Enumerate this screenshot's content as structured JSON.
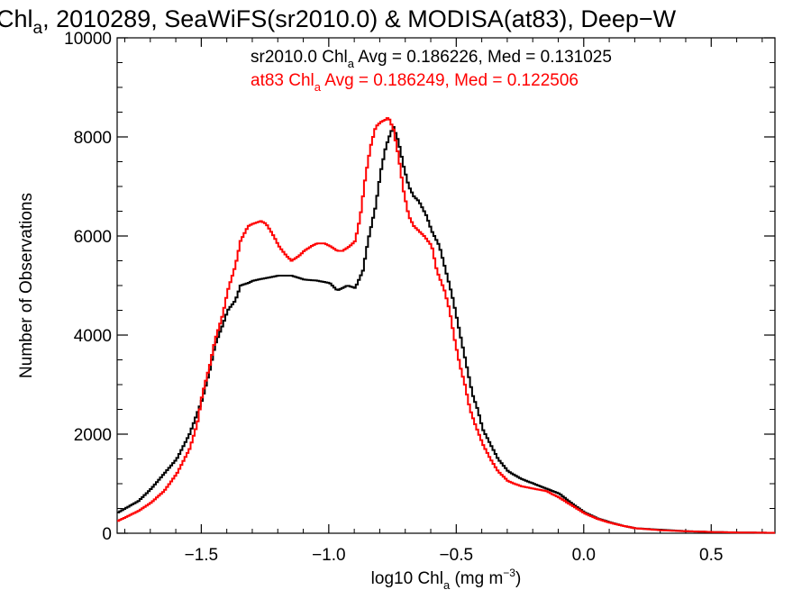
{
  "chart_data": {
    "type": "line",
    "title": {
      "pre": "Chl",
      "sub": "a",
      "post": ", 2010289, SeaWiFS(sr2010.0) & MODISA(at83), Deep−W"
    },
    "xlabel": {
      "pre": "log10 Chl",
      "sub": "a",
      "mid": " (mg m",
      "sup": "−3",
      "post": ")"
    },
    "ylabel": "Number of Observations",
    "xlim": [
      -1.83,
      0.75
    ],
    "ylim": [
      0,
      10000
    ],
    "x_ticks": [
      {
        "value": -1.5,
        "label": "−1.5"
      },
      {
        "value": -1.0,
        "label": "−1.0"
      },
      {
        "value": -0.5,
        "label": "−0.5"
      },
      {
        "value": 0.0,
        "label": "0.0"
      },
      {
        "value": 0.5,
        "label": "0.5"
      }
    ],
    "y_ticks": [
      {
        "value": 0,
        "label": "0"
      },
      {
        "value": 2000,
        "label": "2000"
      },
      {
        "value": 4000,
        "label": "4000"
      },
      {
        "value": 6000,
        "label": "6000"
      },
      {
        "value": 8000,
        "label": "8000"
      },
      {
        "value": 10000,
        "label": "10000"
      }
    ],
    "annotations": [
      {
        "pre": "sr2010.0 Chl",
        "sub": "a",
        "post": " Avg = 0.186226, Med = 0.131025",
        "color": "#000000"
      },
      {
        "pre": "at83 Chl",
        "sub": "a",
        "post": " Avg = 0.186249, Med = 0.122506",
        "color": "#ff0000"
      }
    ],
    "series": [
      {
        "color": "#000000",
        "points": [
          [
            -1.83,
            420
          ],
          [
            -1.75,
            650
          ],
          [
            -1.7,
            900
          ],
          [
            -1.65,
            1200
          ],
          [
            -1.6,
            1500
          ],
          [
            -1.55,
            2000
          ],
          [
            -1.5,
            2700
          ],
          [
            -1.47,
            3300
          ],
          [
            -1.45,
            3800
          ],
          [
            -1.42,
            4200
          ],
          [
            -1.4,
            4500
          ],
          [
            -1.37,
            4700
          ],
          [
            -1.35,
            5000
          ],
          [
            -1.32,
            5050
          ],
          [
            -1.3,
            5100
          ],
          [
            -1.25,
            5150
          ],
          [
            -1.2,
            5200
          ],
          [
            -1.15,
            5200
          ],
          [
            -1.1,
            5120
          ],
          [
            -1.05,
            5100
          ],
          [
            -1.0,
            5050
          ],
          [
            -0.97,
            4900
          ],
          [
            -0.93,
            5000
          ],
          [
            -0.9,
            4950
          ],
          [
            -0.87,
            5300
          ],
          [
            -0.85,
            5900
          ],
          [
            -0.82,
            6600
          ],
          [
            -0.8,
            7300
          ],
          [
            -0.78,
            7800
          ],
          [
            -0.76,
            8100
          ],
          [
            -0.75,
            8200
          ],
          [
            -0.73,
            7900
          ],
          [
            -0.71,
            7400
          ],
          [
            -0.69,
            7000
          ],
          [
            -0.67,
            6800
          ],
          [
            -0.65,
            6700
          ],
          [
            -0.62,
            6400
          ],
          [
            -0.6,
            6100
          ],
          [
            -0.57,
            5800
          ],
          [
            -0.55,
            5400
          ],
          [
            -0.52,
            4800
          ],
          [
            -0.5,
            4300
          ],
          [
            -0.48,
            3800
          ],
          [
            -0.46,
            3300
          ],
          [
            -0.44,
            2800
          ],
          [
            -0.42,
            2500
          ],
          [
            -0.4,
            2100
          ],
          [
            -0.37,
            1800
          ],
          [
            -0.34,
            1500
          ],
          [
            -0.3,
            1250
          ],
          [
            -0.25,
            1100
          ],
          [
            -0.2,
            1000
          ],
          [
            -0.15,
            900
          ],
          [
            -0.1,
            800
          ],
          [
            -0.05,
            600
          ],
          [
            0.0,
            420
          ],
          [
            0.05,
            300
          ],
          [
            0.1,
            220
          ],
          [
            0.15,
            150
          ],
          [
            0.2,
            100
          ],
          [
            0.3,
            70
          ],
          [
            0.4,
            40
          ],
          [
            0.5,
            25
          ],
          [
            0.6,
            15
          ],
          [
            0.75,
            8
          ]
        ]
      },
      {
        "color": "#ff0000",
        "points": [
          [
            -1.83,
            250
          ],
          [
            -1.75,
            450
          ],
          [
            -1.7,
            620
          ],
          [
            -1.65,
            850
          ],
          [
            -1.6,
            1200
          ],
          [
            -1.55,
            1700
          ],
          [
            -1.52,
            2200
          ],
          [
            -1.5,
            2800
          ],
          [
            -1.47,
            3400
          ],
          [
            -1.45,
            3900
          ],
          [
            -1.42,
            4400
          ],
          [
            -1.4,
            4900
          ],
          [
            -1.37,
            5400
          ],
          [
            -1.35,
            5900
          ],
          [
            -1.32,
            6200
          ],
          [
            -1.3,
            6250
          ],
          [
            -1.27,
            6300
          ],
          [
            -1.25,
            6250
          ],
          [
            -1.22,
            6000
          ],
          [
            -1.2,
            5800
          ],
          [
            -1.17,
            5600
          ],
          [
            -1.15,
            5500
          ],
          [
            -1.12,
            5600
          ],
          [
            -1.1,
            5700
          ],
          [
            -1.07,
            5800
          ],
          [
            -1.05,
            5850
          ],
          [
            -1.02,
            5850
          ],
          [
            -1.0,
            5800
          ],
          [
            -0.97,
            5700
          ],
          [
            -0.95,
            5700
          ],
          [
            -0.92,
            5800
          ],
          [
            -0.9,
            5900
          ],
          [
            -0.88,
            6400
          ],
          [
            -0.86,
            7200
          ],
          [
            -0.84,
            7800
          ],
          [
            -0.82,
            8200
          ],
          [
            -0.8,
            8300
          ],
          [
            -0.78,
            8350
          ],
          [
            -0.77,
            8400
          ],
          [
            -0.75,
            8150
          ],
          [
            -0.73,
            7600
          ],
          [
            -0.71,
            6900
          ],
          [
            -0.69,
            6400
          ],
          [
            -0.67,
            6200
          ],
          [
            -0.65,
            6100
          ],
          [
            -0.63,
            6000
          ],
          [
            -0.6,
            5800
          ],
          [
            -0.58,
            5300
          ],
          [
            -0.55,
            4900
          ],
          [
            -0.53,
            4500
          ],
          [
            -0.51,
            3900
          ],
          [
            -0.49,
            3400
          ],
          [
            -0.47,
            3000
          ],
          [
            -0.45,
            2500
          ],
          [
            -0.43,
            2200
          ],
          [
            -0.4,
            1800
          ],
          [
            -0.37,
            1500
          ],
          [
            -0.34,
            1250
          ],
          [
            -0.3,
            1050
          ],
          [
            -0.25,
            950
          ],
          [
            -0.2,
            900
          ],
          [
            -0.15,
            850
          ],
          [
            -0.1,
            720
          ],
          [
            -0.05,
            560
          ],
          [
            0.0,
            400
          ],
          [
            0.05,
            290
          ],
          [
            0.1,
            210
          ],
          [
            0.15,
            150
          ],
          [
            0.2,
            100
          ],
          [
            0.3,
            60
          ],
          [
            0.4,
            40
          ],
          [
            0.5,
            25
          ],
          [
            0.6,
            15
          ],
          [
            0.75,
            8
          ]
        ]
      }
    ]
  }
}
